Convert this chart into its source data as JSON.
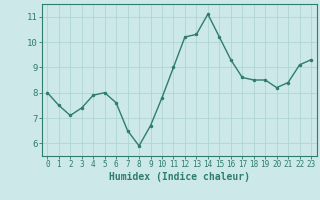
{
  "x": [
    0,
    1,
    2,
    3,
    4,
    5,
    6,
    7,
    8,
    9,
    10,
    11,
    12,
    13,
    14,
    15,
    16,
    17,
    18,
    19,
    20,
    21,
    22,
    23
  ],
  "y": [
    8.0,
    7.5,
    7.1,
    7.4,
    7.9,
    8.0,
    7.6,
    6.5,
    5.9,
    6.7,
    7.8,
    9.0,
    10.2,
    10.3,
    11.1,
    10.2,
    9.3,
    8.6,
    8.5,
    8.5,
    8.2,
    8.4,
    9.1,
    9.3
  ],
  "xlabel": "Humidex (Indice chaleur)",
  "ylim": [
    5.5,
    11.5
  ],
  "xlim": [
    -0.5,
    23.5
  ],
  "yticks": [
    6,
    7,
    8,
    9,
    10,
    11
  ],
  "xticks": [
    0,
    1,
    2,
    3,
    4,
    5,
    6,
    7,
    8,
    9,
    10,
    11,
    12,
    13,
    14,
    15,
    16,
    17,
    18,
    19,
    20,
    21,
    22,
    23
  ],
  "line_color": "#2e7d6e",
  "marker_color": "#2e7d6e",
  "bg_color": "#cce8e8",
  "grid_color": "#b0d4d4",
  "axis_color": "#2e7d6e",
  "label_color": "#2e7d6e",
  "tick_color": "#2e7d6e",
  "tick_fontsize": 5.5,
  "xlabel_fontsize": 7.0,
  "linewidth": 1.0,
  "markersize": 3.0
}
